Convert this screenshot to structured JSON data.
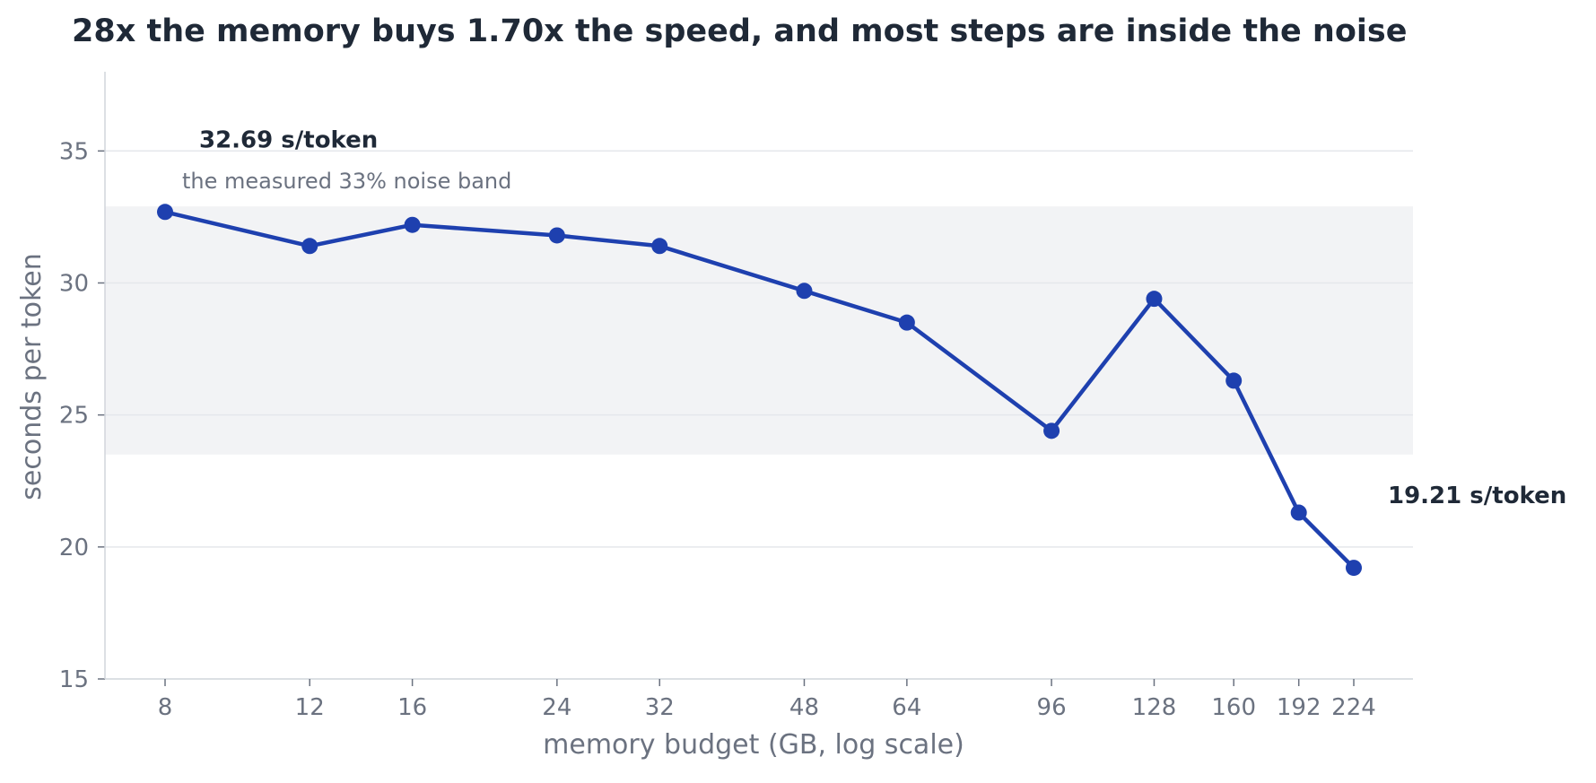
{
  "chart_data": {
    "type": "line",
    "title": "28x the memory buys 1.70x the speed, and most steps are inside the noise",
    "xlabel": "memory budget (GB, log scale)",
    "ylabel": "seconds per token",
    "x_scale": "log",
    "ylim": [
      15,
      38
    ],
    "yticks": [
      15,
      20,
      25,
      30,
      35
    ],
    "xticks": [
      8,
      12,
      16,
      24,
      32,
      48,
      64,
      96,
      128,
      160,
      192,
      224
    ],
    "grid": "horizontal",
    "series": [
      {
        "color": "#1e40af",
        "x": [
          8,
          12,
          16,
          24,
          32,
          48,
          64,
          96,
          128,
          160,
          192,
          224
        ],
        "y": [
          32.69,
          31.4,
          32.2,
          31.8,
          31.4,
          29.7,
          28.5,
          24.4,
          29.4,
          26.3,
          21.3,
          19.21
        ]
      }
    ],
    "noise_band": {
      "y_low": 23.5,
      "y_high": 32.9,
      "color": "#f2f3f5",
      "label": "the measured 33% noise band"
    },
    "annotations": [
      {
        "id": "first",
        "text": "32.69 s/token",
        "x": 8,
        "y": 32.69
      },
      {
        "id": "last",
        "text": "19.21 s/token",
        "x": 224,
        "y": 19.21
      }
    ],
    "colors": {
      "line": "#1e40af",
      "grid": "#e5e7eb",
      "axis": "#d1d5db",
      "text": "#1f2937",
      "muted": "#6b7280"
    }
  }
}
